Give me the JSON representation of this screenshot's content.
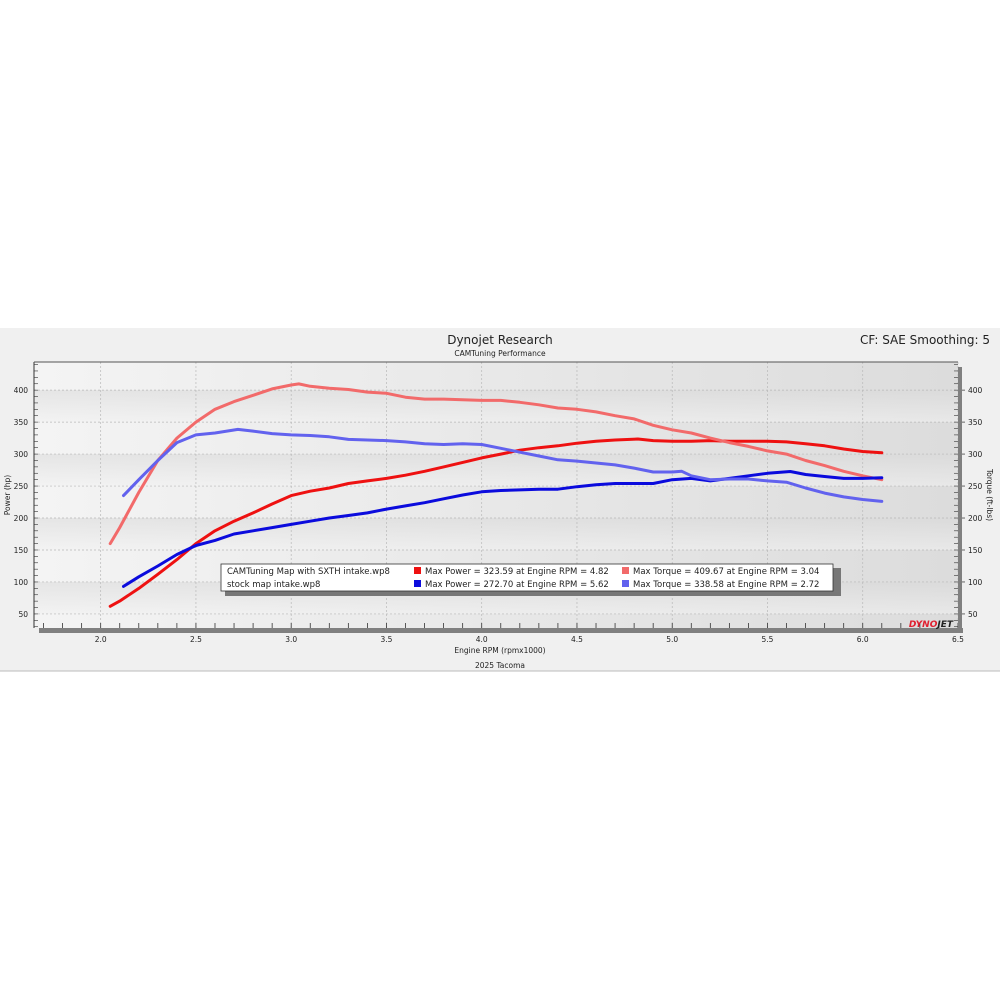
{
  "header": {
    "title": "Dynojet Research",
    "subtitle": "CAMTuning Performance",
    "settings": "CF: SAE Smoothing: 5",
    "footer": "2025 Tacoma",
    "logo": "DYNOJET"
  },
  "legend": {
    "runs": [
      "CAMTuning Map with SXTH intake.wp8",
      "stock map intake.wp8"
    ],
    "entries": [
      "Max Power = 323.59 at Engine RPM = 4.82",
      "Max Torque = 409.67 at Engine RPM = 3.04",
      "Max Power = 272.70 at Engine RPM = 5.62",
      "Max Torque = 338.58 at Engine RPM = 2.72"
    ]
  },
  "chart_data": {
    "type": "line",
    "title": "Dynojet Research",
    "subtitle": "CAMTuning Performance",
    "xlabel": "Engine RPM (rpmx1000)",
    "ylabel": "Power (hp)",
    "y2label": "Torque (ft-lbs)",
    "xlim": [
      1.65,
      6.5
    ],
    "ylim": [
      28,
      444
    ],
    "xticks": [
      "2.0",
      "2.5",
      "3.0",
      "3.5",
      "4.0",
      "4.5",
      "5.0",
      "5.5",
      "6.0",
      "6.5"
    ],
    "yticks": [
      "50",
      "100",
      "150",
      "200",
      "250",
      "300",
      "350",
      "400"
    ],
    "grid": true,
    "series": [
      {
        "name": "CAMTuning Map with SXTH intake.wp8 Power",
        "color": "#ee1111",
        "axis": "left",
        "x": [
          2.05,
          2.1,
          2.2,
          2.3,
          2.4,
          2.5,
          2.6,
          2.7,
          2.8,
          2.9,
          3.0,
          3.1,
          3.2,
          3.3,
          3.4,
          3.5,
          3.6,
          3.7,
          3.8,
          3.9,
          4.0,
          4.1,
          4.2,
          4.3,
          4.4,
          4.5,
          4.6,
          4.7,
          4.82,
          4.9,
          5.0,
          5.1,
          5.2,
          5.3,
          5.4,
          5.5,
          5.6,
          5.7,
          5.8,
          5.9,
          6.0,
          6.1
        ],
        "y": [
          62,
          70,
          90,
          112,
          135,
          160,
          180,
          195,
          208,
          222,
          235,
          242,
          247,
          254,
          258,
          262,
          267,
          273,
          280,
          287,
          294,
          300,
          306,
          310,
          313,
          317,
          320,
          322,
          323.6,
          321,
          320,
          320,
          321,
          320,
          320,
          320,
          319,
          316,
          313,
          308,
          304,
          302
        ]
      },
      {
        "name": "CAMTuning Map with SXTH intake.wp8 Torque",
        "color": "#f26a6a",
        "axis": "right",
        "x": [
          2.05,
          2.1,
          2.2,
          2.3,
          2.4,
          2.5,
          2.6,
          2.7,
          2.8,
          2.9,
          3.0,
          3.04,
          3.1,
          3.2,
          3.3,
          3.4,
          3.5,
          3.6,
          3.7,
          3.8,
          3.9,
          4.0,
          4.1,
          4.2,
          4.3,
          4.4,
          4.5,
          4.6,
          4.7,
          4.8,
          4.9,
          5.0,
          5.1,
          5.2,
          5.3,
          5.4,
          5.5,
          5.6,
          5.7,
          5.8,
          5.9,
          6.0,
          6.1
        ],
        "y": [
          160,
          185,
          240,
          290,
          325,
          350,
          370,
          382,
          392,
          402,
          408,
          409.7,
          406,
          403,
          401,
          397,
          395,
          389,
          386,
          386,
          385,
          384,
          384,
          381,
          377,
          372,
          370,
          366,
          360,
          355,
          345,
          338,
          333,
          325,
          318,
          312,
          305,
          300,
          290,
          282,
          273,
          266,
          260
        ]
      },
      {
        "name": "stock map intake.wp8 Power",
        "color": "#0b0bdd",
        "axis": "left",
        "x": [
          2.12,
          2.2,
          2.3,
          2.4,
          2.5,
          2.6,
          2.7,
          2.8,
          2.9,
          3.0,
          3.1,
          3.2,
          3.3,
          3.4,
          3.5,
          3.6,
          3.7,
          3.8,
          3.9,
          4.0,
          4.1,
          4.2,
          4.3,
          4.4,
          4.5,
          4.6,
          4.7,
          4.8,
          4.9,
          5.0,
          5.1,
          5.2,
          5.3,
          5.4,
          5.5,
          5.62,
          5.7,
          5.8,
          5.9,
          6.0,
          6.1
        ],
        "y": [
          93,
          108,
          125,
          143,
          157,
          165,
          175,
          180,
          185,
          190,
          195,
          200,
          204,
          208,
          214,
          219,
          224,
          230,
          236,
          241,
          243,
          244,
          245,
          245,
          249,
          252,
          254,
          254,
          254,
          260,
          262,
          258,
          262,
          266,
          270,
          272.7,
          268,
          265,
          262,
          262,
          263
        ]
      },
      {
        "name": "stock map intake.wp8 Torque",
        "color": "#6262ee",
        "axis": "right",
        "x": [
          2.12,
          2.2,
          2.3,
          2.4,
          2.5,
          2.6,
          2.72,
          2.8,
          2.9,
          3.0,
          3.1,
          3.2,
          3.3,
          3.4,
          3.5,
          3.6,
          3.7,
          3.8,
          3.9,
          4.0,
          4.1,
          4.2,
          4.3,
          4.4,
          4.5,
          4.6,
          4.7,
          4.8,
          4.9,
          5.0,
          5.05,
          5.1,
          5.2,
          5.3,
          5.4,
          5.5,
          5.6,
          5.7,
          5.8,
          5.9,
          6.0,
          6.1
        ],
        "y": [
          235,
          260,
          290,
          318,
          330,
          333,
          338.6,
          336,
          332,
          330,
          329,
          327,
          323,
          322,
          321,
          319,
          316,
          315,
          316,
          315,
          309,
          303,
          297,
          291,
          289,
          286,
          283,
          278,
          272,
          272,
          273,
          266,
          260,
          261,
          261,
          258,
          256,
          247,
          239,
          233,
          229,
          226
        ]
      }
    ]
  }
}
